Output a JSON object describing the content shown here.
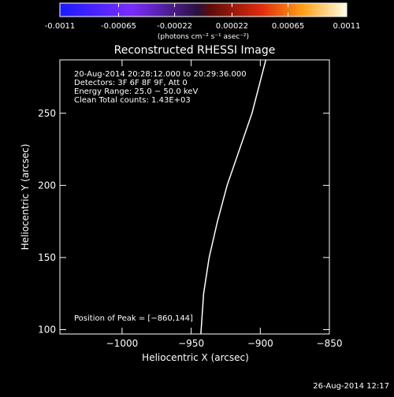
{
  "colorbar": {
    "ticks": [
      "-0.0011",
      "-0.00065",
      "-0.00022",
      "0.00022",
      "0.00065",
      "0.0011"
    ],
    "values": [
      -0.0011,
      -0.00065,
      -0.00022,
      0.00022,
      0.00065,
      0.0011
    ],
    "range": [
      -0.0011,
      0.0011
    ],
    "unit_label": "(photons cm⁻² s⁻¹ asec⁻²)"
  },
  "chart_data": {
    "type": "heatmap",
    "title": "Reconstructed RHESSI Image",
    "xlabel": "Heliocentric X (arcsec)",
    "ylabel": "Heliocentric Y (arcsec)",
    "xlim": [
      -1045,
      -850
    ],
    "ylim": [
      97,
      287
    ],
    "xticks": [
      -1000,
      -950,
      -900,
      -850
    ],
    "xtick_labels": [
      "−1000",
      "−950",
      "−900",
      "−850"
    ],
    "yticks": [
      100,
      150,
      200,
      250
    ],
    "ytick_labels": [
      "100",
      "150",
      "200",
      "250"
    ],
    "info_lines": [
      "20-Aug-2014 20:28:12.000 to 20:29:36.000",
      "Detectors: 3F 6F 8F 9F, Att 0",
      "Energy Range: 25.0 − 50.0 keV",
      "Clean     Total counts: 1.43E+03"
    ],
    "peak_label": "Position of Peak = [−860,144]",
    "peak": [
      -860,
      144
    ],
    "limb": {
      "x": [
        -943,
        -941,
        -937,
        -931,
        -924,
        -915,
        -906,
        -896
      ],
      "y": [
        97,
        125,
        150,
        175,
        200,
        225,
        250,
        287
      ]
    },
    "grid": false
  },
  "timestamp": "26-Aug-2014 12:17"
}
